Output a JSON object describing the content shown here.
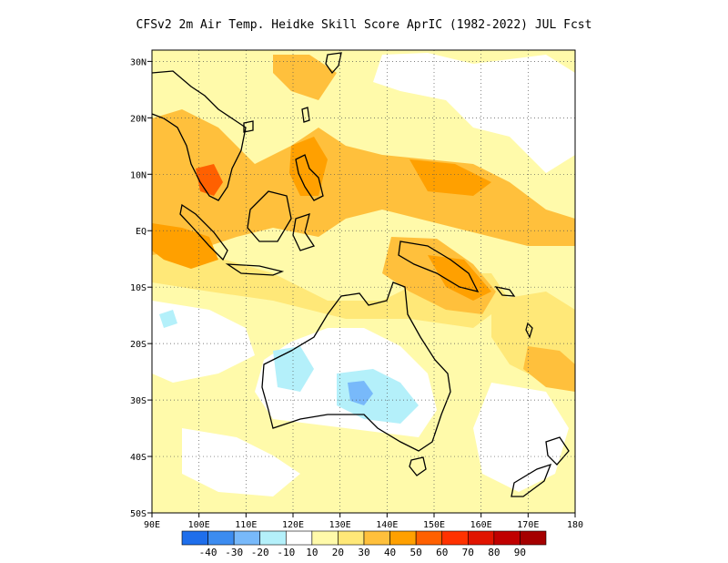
{
  "title": "CFSv2  2m Air Temp. Heidke Skill Score AprIC (1982-2022) JUL Fcst",
  "map": {
    "lat_labels": [
      "30N",
      "20N",
      "10N",
      "EQ",
      "10S",
      "20S",
      "30S",
      "40S",
      "50S"
    ],
    "lon_labels": [
      "90E",
      "100E",
      "110E",
      "120E",
      "130E",
      "140E",
      "150E",
      "160E",
      "170E",
      "180"
    ],
    "lon_range": [
      90,
      180
    ],
    "lat_range": [
      -50,
      32
    ],
    "grid": "dotted"
  },
  "colorbar": {
    "labels": [
      "-40",
      "-30",
      "-20",
      "-10",
      "10",
      "20",
      "30",
      "40",
      "50",
      "60",
      "70",
      "80",
      "90"
    ],
    "colors": [
      "#1e6eeb",
      "#3c8cf0",
      "#78b9fa",
      "#b4f0fa",
      "#ffffff",
      "#fffaaa",
      "#ffe878",
      "#ffc03c",
      "#ffa000",
      "#ff6000",
      "#ff3200",
      "#e11400",
      "#c00000",
      "#a50000"
    ]
  },
  "shading": {
    "colors": {
      "light_yellow": "#fffaaa",
      "yellow": "#ffe878",
      "light_orange": "#ffc03c",
      "orange": "#ffa000",
      "dark_orange": "#ff6000",
      "light_blue": "#b4f0fa",
      "mid_blue": "#78b9fa"
    }
  }
}
